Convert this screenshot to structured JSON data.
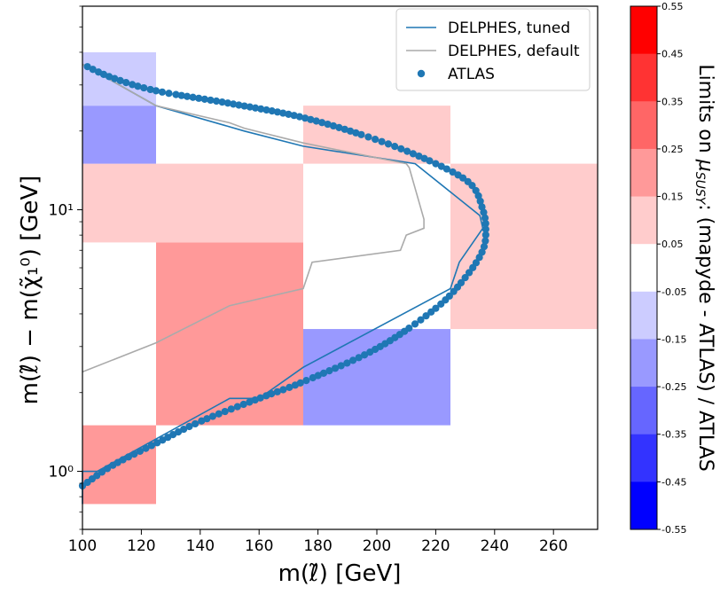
{
  "chart_data": {
    "type": "heatmap",
    "xlabel": "m(ℓ̃) [GeV]",
    "ylabel": "m(ℓ̃) − m(χ̃₁⁰) [GeV]",
    "xlim": [
      100,
      275
    ],
    "ylim": [
      0.6,
      60
    ],
    "yscale": "log",
    "x_ticks": [
      "100",
      "120",
      "140",
      "160",
      "180",
      "200",
      "220",
      "240",
      "260"
    ],
    "y_ticks": [
      "10⁰",
      "10¹"
    ],
    "grid": false,
    "legend_position": "top-right",
    "heatmap_cells": [
      {
        "x": [
          100,
          125
        ],
        "y": [
          0.75,
          1.5
        ],
        "value": 0.2
      },
      {
        "x": [
          125,
          175
        ],
        "y": [
          1.5,
          7.5
        ],
        "value": 0.2
      },
      {
        "x": [
          100,
          175
        ],
        "y": [
          7.5,
          15
        ],
        "value": 0.1
      },
      {
        "x": [
          100,
          125
        ],
        "y": [
          15,
          25
        ],
        "value": -0.2
      },
      {
        "x": [
          100,
          125
        ],
        "y": [
          25,
          40
        ],
        "value": -0.1
      },
      {
        "x": [
          175,
          225
        ],
        "y": [
          15,
          25
        ],
        "value": 0.1
      },
      {
        "x": [
          175,
          225
        ],
        "y": [
          1.5,
          3.5
        ],
        "value": -0.2
      },
      {
        "x": [
          225,
          275
        ],
        "y": [
          3.5,
          15
        ],
        "value": 0.1
      }
    ],
    "series": [
      {
        "name": "DELPHES, tuned",
        "type": "line",
        "color": "#1f77b4",
        "x": [
          100,
          100,
          105,
          150,
          160,
          175,
          225,
          228,
          236,
          235,
          213,
          175,
          155,
          125,
          100
        ],
        "y": [
          0.75,
          1.0,
          1.0,
          1.9,
          1.9,
          2.5,
          5.0,
          6.3,
          8.5,
          9.5,
          15,
          17.5,
          20,
          25,
          36
        ]
      },
      {
        "name": "DELPHES, default",
        "type": "line",
        "color": "#aaaaaa",
        "x": [
          100,
          125,
          150,
          175,
          178,
          208,
          210,
          216,
          216,
          211,
          210,
          175,
          155,
          150,
          125,
          100
        ],
        "y": [
          2.4,
          3.1,
          4.3,
          5.0,
          6.3,
          7.0,
          8.0,
          8.5,
          9.2,
          14.5,
          15,
          18,
          20.5,
          21.5,
          25,
          36
        ]
      },
      {
        "name": "ATLAS",
        "type": "scatter",
        "color": "#1f77b4",
        "x": [
          100,
          110,
          125,
          140,
          160,
          175,
          200,
          220,
          230,
          236,
          237,
          236,
          232,
          220,
          200,
          175,
          150,
          125,
          110,
          100
        ],
        "y": [
          0.88,
          1.05,
          1.28,
          1.55,
          1.9,
          2.2,
          2.95,
          4.2,
          5.5,
          7.0,
          8.5,
          10.0,
          12.5,
          15.0,
          18.5,
          22.5,
          25.5,
          28.5,
          32.0,
          36.0
        ]
      }
    ],
    "colorbar": {
      "label": "Limits on μSUSY: (mapyde - ATLAS) / ATLAS",
      "label_prefix": "Limits on ",
      "label_mu": "μ",
      "label_sub": "SUSY",
      "label_suffix": ": (mapyde - ATLAS) / ATLAS",
      "ticks": [
        "0.55",
        "0.45",
        "0.35",
        "0.25",
        "0.15",
        "0.05",
        "-0.05",
        "-0.15",
        "-0.25",
        "-0.35",
        "-0.45",
        "-0.55"
      ],
      "colors": [
        "#ff0000",
        "#ff3333",
        "#ff6666",
        "#ff9999",
        "#ffcccc",
        "#ffffff",
        "#ccccff",
        "#9999ff",
        "#6666ff",
        "#3333ff",
        "#0000ff"
      ]
    }
  }
}
